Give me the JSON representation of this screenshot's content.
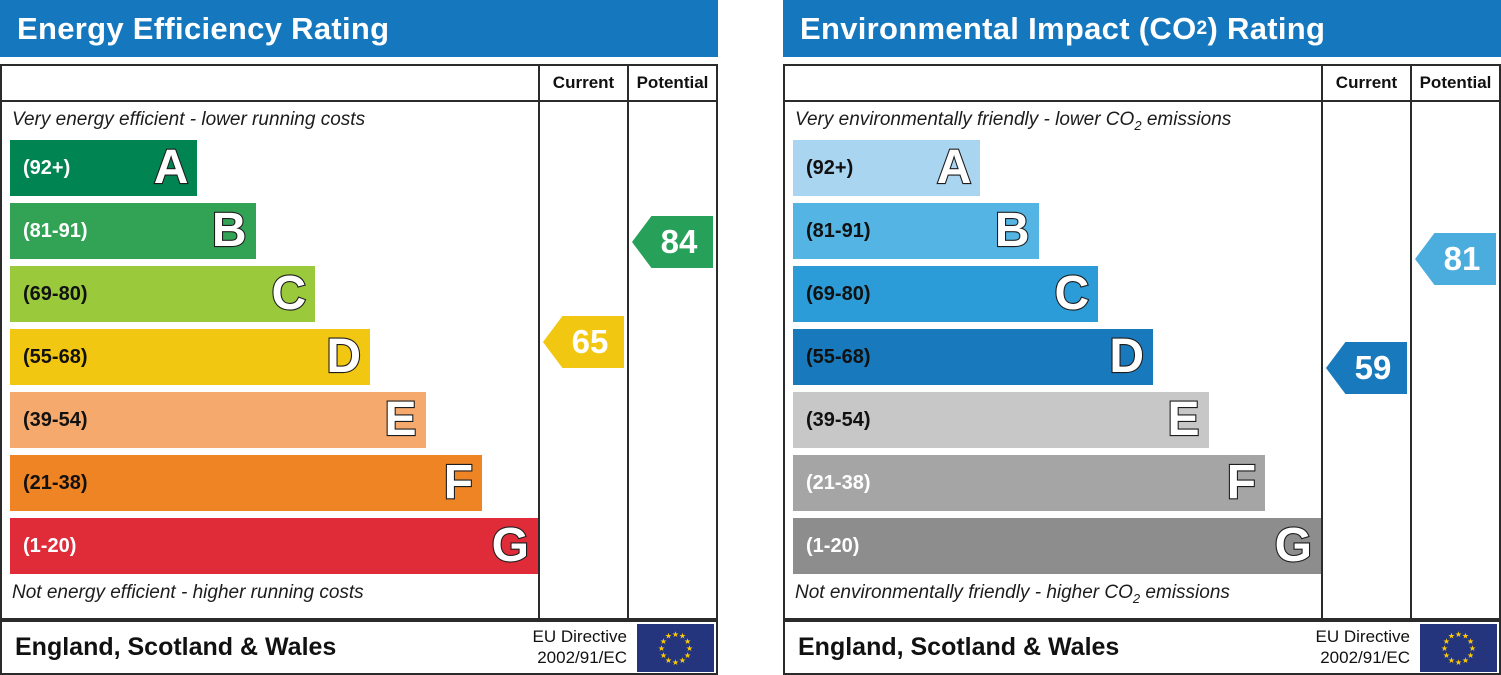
{
  "colors": {
    "header_bg": "#1577bd",
    "border": "#2b2b2b",
    "flag_bg": "#24357e",
    "flag_star": "#ffcc00",
    "page_bg": "#ffffff"
  },
  "chart_data": [
    {
      "type": "bar",
      "id": "energy-efficiency-rating",
      "title": {
        "pre": "Energy Efficiency Rating",
        "sub": "",
        "post": ""
      },
      "columns": {
        "current": "Current",
        "potential": "Potential"
      },
      "note_top": {
        "pre": "Very energy efficient - lower running costs",
        "sub": "",
        "post": ""
      },
      "note_bottom": {
        "pre": "Not energy efficient - higher running costs",
        "sub": "",
        "post": ""
      },
      "scale": [
        1,
        100
      ],
      "bands": [
        {
          "letter": "A",
          "label": "(92+)",
          "range": [
            92,
            100
          ],
          "width_pct": 35.5,
          "color": "#008552",
          "label_color": "#ffffff"
        },
        {
          "letter": "B",
          "label": "(81-91)",
          "range": [
            81,
            91
          ],
          "width_pct": 46.5,
          "color": "#32a355",
          "label_color": "#ffffff"
        },
        {
          "letter": "C",
          "label": "(69-80)",
          "range": [
            69,
            80
          ],
          "width_pct": 57.8,
          "color": "#9aca3c",
          "label_color": "#111111"
        },
        {
          "letter": "D",
          "label": "(55-68)",
          "range": [
            55,
            68
          ],
          "width_pct": 68.2,
          "color": "#f2c712",
          "label_color": "#111111"
        },
        {
          "letter": "E",
          "label": "(39-54)",
          "range": [
            39,
            54
          ],
          "width_pct": 78.7,
          "color": "#f6a96c",
          "label_color": "#111111"
        },
        {
          "letter": "F",
          "label": "(21-38)",
          "range": [
            21,
            38
          ],
          "width_pct": 89.4,
          "color": "#ee8424",
          "label_color": "#111111"
        },
        {
          "letter": "G",
          "label": "(1-20)",
          "range": [
            1,
            20
          ],
          "width_pct": 100,
          "color": "#e02b38",
          "label_color": "#ffffff"
        }
      ],
      "markers": {
        "current": {
          "value": 65,
          "band": "D",
          "color": "#f2c712"
        },
        "potential": {
          "value": 84,
          "band": "B",
          "color": "#27a159"
        }
      },
      "footer": {
        "region": "England, Scotland & Wales",
        "directive": [
          "EU Directive",
          "2002/91/EC"
        ]
      }
    },
    {
      "type": "bar",
      "id": "environmental-impact-co2-rating",
      "title": {
        "pre": "Environmental Impact (CO",
        "sub": "2",
        "post": ") Rating"
      },
      "columns": {
        "current": "Current",
        "potential": "Potential"
      },
      "note_top": {
        "pre": "Very environmentally friendly - lower CO",
        "sub": "2",
        "post": " emissions"
      },
      "note_bottom": {
        "pre": "Not environmentally friendly - higher CO",
        "sub": "2",
        "post": " emissions"
      },
      "scale": [
        1,
        100
      ],
      "bands": [
        {
          "letter": "A",
          "label": "(92+)",
          "range": [
            92,
            100
          ],
          "width_pct": 35.5,
          "color": "#a9d5f0",
          "label_color": "#111111"
        },
        {
          "letter": "B",
          "label": "(81-91)",
          "range": [
            81,
            91
          ],
          "width_pct": 46.5,
          "color": "#54b5e5",
          "label_color": "#111111"
        },
        {
          "letter": "C",
          "label": "(69-80)",
          "range": [
            69,
            80
          ],
          "width_pct": 57.8,
          "color": "#2b9cd7",
          "label_color": "#111111"
        },
        {
          "letter": "D",
          "label": "(55-68)",
          "range": [
            55,
            68
          ],
          "width_pct": 68.2,
          "color": "#1879bd",
          "label_color": "#111111"
        },
        {
          "letter": "E",
          "label": "(39-54)",
          "range": [
            39,
            54
          ],
          "width_pct": 78.7,
          "color": "#c7c7c7",
          "label_color": "#111111"
        },
        {
          "letter": "F",
          "label": "(21-38)",
          "range": [
            21,
            38
          ],
          "width_pct": 89.4,
          "color": "#a5a5a5",
          "label_color": "#ffffff"
        },
        {
          "letter": "G",
          "label": "(1-20)",
          "range": [
            1,
            20
          ],
          "width_pct": 100,
          "color": "#8d8d8d",
          "label_color": "#ffffff"
        }
      ],
      "markers": {
        "current": {
          "value": 59,
          "band": "D",
          "color": "#1879bd"
        },
        "potential": {
          "value": 81,
          "band": "B",
          "color": "#4badde"
        }
      },
      "footer": {
        "region": "England, Scotland & Wales",
        "directive": [
          "EU Directive",
          "2002/91/EC"
        ]
      }
    }
  ]
}
